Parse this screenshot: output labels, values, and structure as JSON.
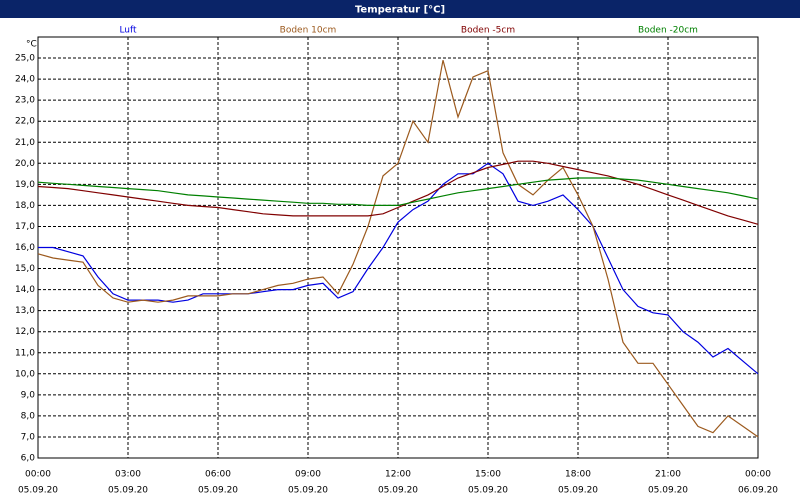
{
  "chart_data": {
    "type": "line",
    "title": "Temperatur [°C]",
    "y_unit": "°C",
    "x": [
      0,
      0.5,
      1,
      1.5,
      2,
      2.5,
      3,
      3.5,
      4,
      4.5,
      5,
      5.5,
      6,
      6.5,
      7,
      7.5,
      8,
      8.5,
      9,
      9.5,
      10,
      10.5,
      11,
      11.5,
      12,
      12.5,
      13,
      13.5,
      14,
      14.5,
      15,
      15.5,
      16,
      16.5,
      17,
      17.5,
      18,
      18.5,
      19,
      19.5,
      20,
      20.5,
      21,
      21.5,
      22,
      22.5,
      23,
      23.5,
      24
    ],
    "series": [
      {
        "name": "Luft",
        "color": "#0000e0",
        "values": [
          16.0,
          16.0,
          15.8,
          15.6,
          14.6,
          13.8,
          13.5,
          13.5,
          13.5,
          13.4,
          13.5,
          13.8,
          13.8,
          13.8,
          13.8,
          13.9,
          14.0,
          14.0,
          14.2,
          14.3,
          13.6,
          13.9,
          15.0,
          16.0,
          17.2,
          17.8,
          18.2,
          19.0,
          19.5,
          19.5,
          20.0,
          19.5,
          18.2,
          18.0,
          18.2,
          18.5,
          17.8,
          17.0,
          15.5,
          14.0,
          13.2,
          12.9,
          12.8,
          12.0,
          11.5,
          10.8,
          11.2,
          10.6,
          10.0
        ]
      },
      {
        "name": "Boden 10cm",
        "color": "#9c5a1e",
        "values": [
          15.7,
          15.5,
          15.4,
          15.3,
          14.2,
          13.6,
          13.4,
          13.5,
          13.4,
          13.5,
          13.7,
          13.7,
          13.7,
          13.8,
          13.8,
          14.0,
          14.2,
          14.3,
          14.5,
          14.6,
          13.8,
          15.2,
          17.0,
          19.4,
          20.0,
          22.0,
          21.0,
          24.9,
          22.2,
          24.1,
          24.4,
          20.5,
          19.0,
          18.5,
          19.2,
          19.8,
          18.5,
          17.0,
          14.5,
          11.5,
          10.5,
          10.5,
          9.5,
          8.5,
          7.5,
          7.2,
          8.0,
          7.5,
          7.0
        ]
      },
      {
        "name": "Boden -5cm",
        "color": "#800000",
        "values": [
          18.9,
          18.85,
          18.8,
          18.7,
          18.6,
          18.5,
          18.4,
          18.3,
          18.2,
          18.1,
          18.0,
          17.95,
          17.9,
          17.8,
          17.7,
          17.6,
          17.55,
          17.5,
          17.5,
          17.5,
          17.5,
          17.5,
          17.5,
          17.6,
          17.9,
          18.2,
          18.5,
          18.9,
          19.3,
          19.55,
          19.8,
          19.95,
          20.1,
          20.1,
          20.0,
          19.85,
          19.7,
          19.55,
          19.4,
          19.2,
          19.0,
          18.75,
          18.5,
          18.25,
          18.0,
          17.75,
          17.5,
          17.3,
          17.1
        ]
      },
      {
        "name": "Boden -20cm",
        "color": "#008000",
        "values": [
          19.1,
          19.05,
          19.0,
          18.95,
          18.9,
          18.85,
          18.8,
          18.75,
          18.7,
          18.6,
          18.5,
          18.45,
          18.4,
          18.35,
          18.3,
          18.25,
          18.2,
          18.15,
          18.1,
          18.1,
          18.05,
          18.05,
          18.0,
          18.0,
          18.0,
          18.15,
          18.3,
          18.45,
          18.6,
          18.7,
          18.8,
          18.9,
          19.0,
          19.1,
          19.2,
          19.25,
          19.3,
          19.3,
          19.3,
          19.25,
          19.2,
          19.1,
          19.0,
          18.9,
          18.8,
          18.7,
          18.6,
          18.45,
          18.3
        ]
      }
    ],
    "xlim": [
      0,
      24
    ],
    "xticks": [
      {
        "value": 0,
        "label": "00:00"
      },
      {
        "value": 3,
        "label": "03:00"
      },
      {
        "value": 6,
        "label": "06:00"
      },
      {
        "value": 9,
        "label": "09:00"
      },
      {
        "value": 12,
        "label": "12:00"
      },
      {
        "value": 15,
        "label": "15:00"
      },
      {
        "value": 18,
        "label": "18:00"
      },
      {
        "value": 21,
        "label": "21:00"
      },
      {
        "value": 24,
        "label": "00:00"
      }
    ],
    "xtick_dates": [
      "05.09.20",
      "05.09.20",
      "05.09.20",
      "05.09.20",
      "05.09.20",
      "05.09.20",
      "05.09.20",
      "05.09.20",
      "06.09.20"
    ],
    "ylim": [
      6,
      26
    ],
    "yticks": [
      {
        "value": 6,
        "label": "6,0"
      },
      {
        "value": 7,
        "label": "7,0"
      },
      {
        "value": 8,
        "label": "8,0"
      },
      {
        "value": 9,
        "label": "9,0"
      },
      {
        "value": 10,
        "label": "10,0"
      },
      {
        "value": 11,
        "label": "11,0"
      },
      {
        "value": 12,
        "label": "12,0"
      },
      {
        "value": 13,
        "label": "13,0"
      },
      {
        "value": 14,
        "label": "14,0"
      },
      {
        "value": 15,
        "label": "15,0"
      },
      {
        "value": 16,
        "label": "16,0"
      },
      {
        "value": 17,
        "label": "17,0"
      },
      {
        "value": 18,
        "label": "18,0"
      },
      {
        "value": 19,
        "label": "19,0"
      },
      {
        "value": 20,
        "label": "20,0"
      },
      {
        "value": 21,
        "label": "21,0"
      },
      {
        "value": 22,
        "label": "22,0"
      },
      {
        "value": 23,
        "label": "23,0"
      },
      {
        "value": 24,
        "label": "24,0"
      },
      {
        "value": 25,
        "label": "25,0"
      }
    ],
    "grid": true
  }
}
